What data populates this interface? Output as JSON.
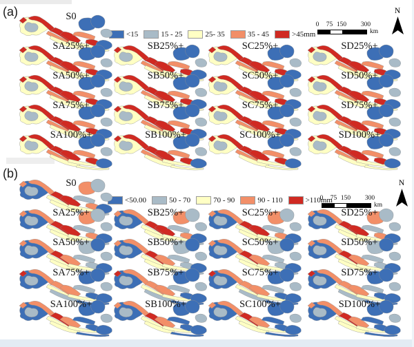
{
  "figure": {
    "palette": {
      "blue": "#3D6FB6",
      "gray": "#A9BBC7",
      "yellow": "#FFFFC4",
      "orange": "#F28F68",
      "red": "#D02A22",
      "region_stroke": "#8f8f8f"
    },
    "region_names": [
      "west-lobe",
      "west-inner",
      "mid-orange-strip",
      "mid-yellow-strip",
      "north-arc",
      "west-nub",
      "mid-band",
      "center-blob",
      "east-top-1",
      "east-top-2",
      "east-orange",
      "east-yellow-strip",
      "east-patch",
      "east-gray",
      "east-end",
      "south-tail"
    ],
    "variants": {
      "a": [
        "yellow",
        "gray",
        "orange",
        "yellow",
        "red",
        "red",
        "red",
        "red",
        "blue",
        "blue",
        "orange",
        "yellow",
        "red",
        "gray",
        "blue",
        "yellow"
      ],
      "b0": [
        "blue",
        "gray",
        "yellow",
        "yellow",
        "orange",
        "orange",
        "red",
        "red",
        "orange",
        "gray",
        "gray",
        "yellow",
        "orange",
        "gray",
        "blue",
        "gray"
      ],
      "b1": [
        "blue",
        "gray",
        "yellow",
        "yellow",
        "orange",
        "orange",
        "red",
        "orange",
        "gray",
        "blue",
        "gray",
        "yellow",
        "gray",
        "gray",
        "blue",
        "gray"
      ],
      "b2": [
        "blue",
        "gray",
        "yellow",
        "gray",
        "orange",
        "red",
        "orange",
        "orange",
        "blue",
        "blue",
        "gray",
        "yellow",
        "blue",
        "gray",
        "blue",
        "blue"
      ],
      "b3": [
        "blue",
        "gray",
        "yellow",
        "yellow",
        "orange",
        "orange",
        "red",
        "orange",
        "blue",
        "blue",
        "blue",
        "yellow",
        "blue",
        "gray",
        "blue",
        "blue"
      ]
    },
    "panels": [
      {
        "id": "a",
        "label": "(a)",
        "legend_items": [
          {
            "label": "<15",
            "color": "blue"
          },
          {
            "label": "15 - 25",
            "color": "gray"
          },
          {
            "label": "25- 35",
            "color": "yellow"
          },
          {
            "label": "35 - 45",
            "color": "orange"
          },
          {
            "label": ">45mm",
            "color": "red"
          }
        ],
        "scalebar": {
          "ticks": [
            "0",
            "75",
            "150",
            "300"
          ],
          "unit": "km"
        },
        "north": "N",
        "rows": [
          {
            "labels": [
              "S0"
            ],
            "variants": [
              "a"
            ]
          },
          {
            "labels": [
              "SA25%+",
              "SB25%+",
              "SC25%+",
              "SD25%+"
            ],
            "variants": [
              "a",
              "a",
              "a",
              "a"
            ]
          },
          {
            "labels": [
              "SA50%+",
              "SB50%+",
              "SC50%+",
              "SD50%+"
            ],
            "variants": [
              "a",
              "a",
              "a",
              "a"
            ]
          },
          {
            "labels": [
              "SA75%+",
              "SB75%+",
              "SC75%+",
              "SD75%+"
            ],
            "variants": [
              "a",
              "a",
              "a",
              "a"
            ]
          },
          {
            "labels": [
              "SA100%+",
              "SB100%+",
              "SC100%+",
              "SD100%+"
            ],
            "variants": [
              "a",
              "a",
              "a",
              "a"
            ]
          }
        ]
      },
      {
        "id": "b",
        "label": "(b)",
        "legend_items": [
          {
            "label": "<50.00",
            "color": "blue"
          },
          {
            "label": "50 - 70",
            "color": "gray"
          },
          {
            "label": "70 - 90",
            "color": "yellow"
          },
          {
            "label": "90 - 110",
            "color": "orange"
          },
          {
            "label": ">110mm",
            "color": "red"
          }
        ],
        "scalebar": {
          "ticks": [
            "0",
            "75",
            "150",
            "300"
          ],
          "unit": "km"
        },
        "north": "N",
        "rows": [
          {
            "labels": [
              "S0"
            ],
            "variants": [
              "b0"
            ]
          },
          {
            "labels": [
              "SA25%+",
              "SB25%+",
              "SC25%+",
              "SD25%+"
            ],
            "variants": [
              "b0",
              "b0",
              "b0",
              "b0"
            ]
          },
          {
            "labels": [
              "SA50%+",
              "SB50%+",
              "SC50%+",
              "SD50%+"
            ],
            "variants": [
              "b1",
              "b1",
              "b1",
              "b1"
            ]
          },
          {
            "labels": [
              "SA75%+",
              "SB75%+",
              "SC75%+",
              "SD75%+"
            ],
            "variants": [
              "b2",
              "b2",
              "b2",
              "b2"
            ]
          },
          {
            "labels": [
              "SA100%+",
              "SB100%+",
              "SC100%+",
              "SD100%+"
            ],
            "variants": [
              "b3",
              "b3",
              "b3",
              "b3"
            ]
          }
        ]
      }
    ]
  }
}
